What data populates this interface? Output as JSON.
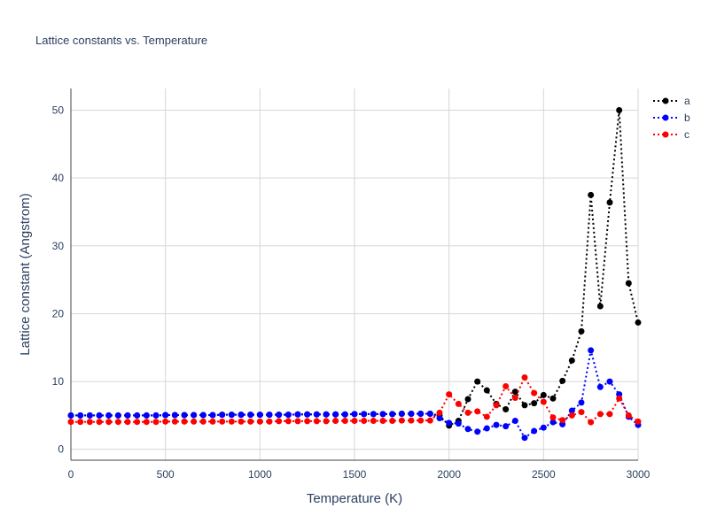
{
  "chart_data": {
    "type": "line",
    "title": "Lattice constants vs. Temperature",
    "xlabel": "Temperature (K)",
    "ylabel": "Lattice constant (Angstrom)",
    "xlim": [
      0,
      3000
    ],
    "ylim": [
      -1.6,
      53.2
    ],
    "xticks": [
      0,
      500,
      1000,
      1500,
      2000,
      2500,
      3000
    ],
    "yticks": [
      0,
      10,
      20,
      30,
      40,
      50
    ],
    "grid": true,
    "legend_position": "top-right",
    "x": [
      0,
      50,
      100,
      150,
      200,
      250,
      300,
      350,
      400,
      450,
      500,
      550,
      600,
      650,
      700,
      750,
      800,
      850,
      900,
      950,
      1000,
      1050,
      1100,
      1150,
      1200,
      1250,
      1300,
      1350,
      1400,
      1450,
      1500,
      1550,
      1600,
      1650,
      1700,
      1750,
      1800,
      1850,
      1900,
      1950,
      2000,
      2050,
      2100,
      2150,
      2200,
      2250,
      2300,
      2350,
      2400,
      2450,
      2500,
      2550,
      2600,
      2650,
      2700,
      2750,
      2800,
      2850,
      2900,
      2950,
      3000
    ],
    "series": [
      {
        "name": "a",
        "color": "#000000",
        "values": [
          5.0,
          5.0,
          5.0,
          5.0,
          5.0,
          5.0,
          5.0,
          5.0,
          5.0,
          5.0,
          5.05,
          5.05,
          5.05,
          5.05,
          5.05,
          5.05,
          5.1,
          5.1,
          5.1,
          5.1,
          5.1,
          5.1,
          5.1,
          5.1,
          5.15,
          5.15,
          5.15,
          5.15,
          5.15,
          5.15,
          5.2,
          5.2,
          5.2,
          5.2,
          5.2,
          5.25,
          5.25,
          5.25,
          5.25,
          5.0,
          3.5,
          4.2,
          7.4,
          10.0,
          8.7,
          6.7,
          5.9,
          8.5,
          6.5,
          6.8,
          8.0,
          7.5,
          10.1,
          13.1,
          17.4,
          37.5,
          21.1,
          36.4,
          50.0,
          24.5,
          18.7
        ]
      },
      {
        "name": "b",
        "color": "#0000ff",
        "values": [
          5.0,
          5.0,
          5.0,
          5.0,
          5.0,
          5.0,
          5.0,
          5.0,
          5.0,
          5.0,
          5.05,
          5.05,
          5.05,
          5.05,
          5.05,
          5.05,
          5.1,
          5.1,
          5.1,
          5.1,
          5.1,
          5.1,
          5.1,
          5.1,
          5.15,
          5.15,
          5.15,
          5.15,
          5.15,
          5.15,
          5.2,
          5.2,
          5.2,
          5.2,
          5.2,
          5.25,
          5.25,
          5.25,
          5.25,
          4.6,
          3.9,
          3.8,
          3.0,
          2.6,
          3.1,
          3.6,
          3.4,
          4.2,
          1.7,
          2.7,
          3.2,
          4.0,
          3.7,
          5.7,
          6.9,
          14.6,
          9.2,
          10.0,
          8.1,
          4.8,
          3.6
        ]
      },
      {
        "name": "c",
        "color": "#ff0000",
        "values": [
          4.05,
          4.05,
          4.05,
          4.05,
          4.05,
          4.05,
          4.05,
          4.05,
          4.05,
          4.05,
          4.1,
          4.1,
          4.1,
          4.1,
          4.1,
          4.1,
          4.1,
          4.1,
          4.1,
          4.1,
          4.1,
          4.1,
          4.15,
          4.15,
          4.15,
          4.15,
          4.15,
          4.15,
          4.2,
          4.2,
          4.2,
          4.2,
          4.2,
          4.2,
          4.2,
          4.25,
          4.25,
          4.25,
          4.25,
          5.4,
          8.1,
          6.7,
          5.4,
          5.6,
          4.8,
          6.5,
          9.3,
          7.6,
          10.6,
          8.3,
          7.0,
          4.7,
          4.3,
          5.0,
          5.5,
          4.0,
          5.2,
          5.2,
          7.5,
          5.0,
          4.1
        ]
      }
    ]
  }
}
